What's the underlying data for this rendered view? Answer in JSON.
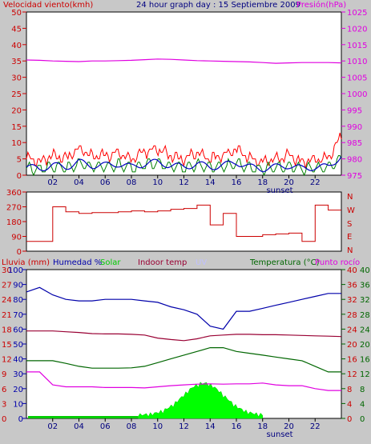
{
  "header": {
    "wind_label": "Velocidad viento(kmh)",
    "title": "24 hour graph day : 15 Septiembre 2009",
    "pressure_label": "Presión(hPa)"
  },
  "middle": {
    "compass": [
      "N",
      "W",
      "S",
      "E",
      "N"
    ]
  },
  "lower_header": {
    "rain": "Lluvia (mm)",
    "humidity": "Humedad %",
    "solar": "Solar",
    "indoor": "Indoor temp",
    "uv": "UV",
    "temperature": "Temperatura (°C)",
    "dewpoint": "Punto rocío"
  },
  "x_ticks": [
    "02",
    "04",
    "06",
    "08",
    "10",
    "12",
    "14",
    "16",
    "18",
    "20",
    "22"
  ],
  "sunset_label": "sunset",
  "colors": {
    "wind_gust": "#ff0000",
    "wind_avg": "#008000",
    "wind_avg2": "#0000c0",
    "pressure": "#e000e0",
    "direction": "#cc0000",
    "humidity": "#0000aa",
    "indoor": "#990033",
    "temperature": "#006600",
    "dewpoint": "#e000e0",
    "solar": "#00ff00",
    "uv": "#c0c0ff"
  },
  "chart_data": [
    {
      "type": "line",
      "title": "24 hour graph day : 15 Septiembre 2009",
      "xlabel": "",
      "x": [
        0,
        1,
        2,
        3,
        4,
        5,
        6,
        7,
        8,
        9,
        10,
        11,
        12,
        13,
        14,
        15,
        16,
        17,
        18,
        19,
        20,
        21,
        22,
        23,
        24
      ],
      "ylim_left": [
        0,
        50
      ],
      "ylim_right": [
        975,
        1025
      ],
      "series": [
        {
          "name": "Velocidad viento(kmh)",
          "axis": "left",
          "values": [
            5,
            4,
            6,
            5,
            8,
            6,
            6,
            7,
            5,
            7,
            8,
            6,
            5,
            7,
            5,
            6,
            8,
            5,
            4,
            5,
            6,
            4,
            5,
            5,
            12
          ]
        },
        {
          "name": "Presión(hPa)",
          "axis": "right",
          "values": [
            1010.3,
            1010.2,
            1010.0,
            1009.9,
            1009.8,
            1010.0,
            1010.0,
            1010.1,
            1010.2,
            1010.4,
            1010.6,
            1010.5,
            1010.3,
            1010.1,
            1010.0,
            1009.9,
            1009.8,
            1009.7,
            1009.5,
            1009.3,
            1009.4,
            1009.5,
            1009.5,
            1009.5,
            1009.4
          ]
        }
      ],
      "yticks_left": [
        "0",
        "5",
        "10",
        "15",
        "20",
        "25",
        "30",
        "35",
        "40",
        "45",
        "50"
      ],
      "yticks_right": [
        "975",
        "980",
        "985",
        "990",
        "995",
        "1000",
        "1005",
        "1010",
        "1015",
        "1020",
        "1025"
      ]
    },
    {
      "type": "line",
      "x": [
        0,
        1,
        2,
        3,
        4,
        5,
        6,
        7,
        8,
        9,
        10,
        11,
        12,
        13,
        14,
        15,
        16,
        17,
        18,
        19,
        20,
        21,
        22,
        23,
        24
      ],
      "ylim": [
        0,
        360
      ],
      "series": [
        {
          "name": "",
          "values": [
            60,
            60,
            270,
            240,
            230,
            235,
            235,
            240,
            245,
            240,
            245,
            255,
            260,
            280,
            160,
            230,
            90,
            90,
            100,
            105,
            110,
            60,
            280,
            250,
            250
          ]
        }
      ],
      "yticks": [
        "0",
        "90",
        "180",
        "270",
        "360"
      ]
    },
    {
      "type": "line",
      "x": [
        0,
        1,
        2,
        3,
        4,
        5,
        6,
        7,
        8,
        9,
        10,
        11,
        12,
        13,
        14,
        15,
        16,
        17,
        18,
        19,
        20,
        21,
        22,
        23,
        24
      ],
      "series": [
        {
          "name": "Humedad %",
          "axis": "humidity",
          "values": [
            85,
            88,
            83,
            80,
            79,
            79,
            80,
            80,
            80,
            79,
            78,
            75,
            73,
            70,
            62,
            60,
            72,
            72,
            74,
            76,
            78,
            80,
            82,
            84,
            84
          ]
        },
        {
          "name": "Indoor temp",
          "axis": "temp",
          "values": [
            23.5,
            23.5,
            23.5,
            23.3,
            23.1,
            22.8,
            22.7,
            22.7,
            22.6,
            22.4,
            21.6,
            21.2,
            20.9,
            21.4,
            22.2,
            22.4,
            22.6,
            22.6,
            22.5,
            22.5,
            22.4,
            22.3,
            22.2,
            22.1,
            22
          ]
        },
        {
          "name": "Temperatura (°C)",
          "axis": "temp",
          "values": [
            15.5,
            15.5,
            15.5,
            14.8,
            14.0,
            13.5,
            13.5,
            13.5,
            13.6,
            14.0,
            15.0,
            16.0,
            17.0,
            18.0,
            19.0,
            19.0,
            18.0,
            17.5,
            17.0,
            16.5,
            16.0,
            15.5,
            14.0,
            12.5,
            12.5
          ]
        },
        {
          "name": "Punto rocío",
          "axis": "temp",
          "values": [
            12.5,
            12.5,
            9.0,
            8.5,
            8.5,
            8.5,
            8.3,
            8.3,
            8.3,
            8.2,
            8.5,
            8.8,
            9.0,
            9.2,
            9.3,
            9.2,
            9.3,
            9.3,
            9.5,
            9.0,
            8.8,
            8.8,
            8.0,
            7.5,
            7.5
          ]
        }
      ],
      "ylim_rain": [
        0,
        30
      ],
      "ylim_humidity": [
        0,
        100
      ],
      "ylim_temp": [
        0,
        40
      ],
      "yticks_rain": [
        "0",
        "3",
        "6",
        "9",
        "12",
        "15",
        "18",
        "21",
        "24",
        "27",
        "30"
      ],
      "yticks_humidity": [
        "0",
        "10",
        "20",
        "30",
        "40",
        "50",
        "60",
        "70",
        "80",
        "90",
        "100"
      ],
      "yticks_temp": [
        "0",
        "4",
        "8",
        "12",
        "16",
        "20",
        "24",
        "28",
        "32",
        "36",
        "40"
      ]
    }
  ]
}
